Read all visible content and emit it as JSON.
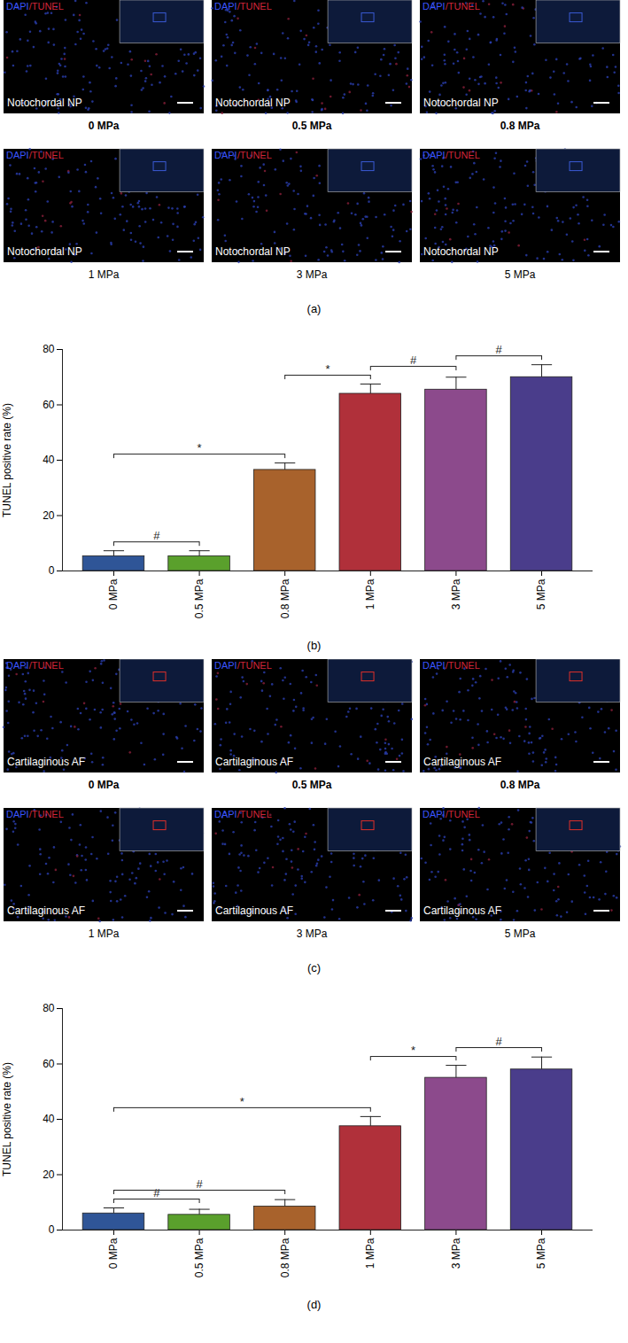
{
  "image_panels": [
    {
      "label": "(a)",
      "tissue": "Notochordal NP",
      "stains": [
        {
          "text": "DAPI",
          "color": "#3a55ff"
        },
        {
          "text": "/TUNEL",
          "color": "#d0263a"
        }
      ],
      "box_color": "#3b5bd6",
      "conditions": [
        "0 MPa",
        "0.5 MPa",
        "0.8 MPa",
        "1 MPa",
        "3 MPa",
        "5 MPa"
      ]
    },
    {
      "label": "(c)",
      "tissue": "Cartilaginous AF",
      "stains": [
        {
          "text": "DAPI",
          "color": "#3a55ff"
        },
        {
          "text": "/TUNEL",
          "color": "#d0263a"
        }
      ],
      "box_color": "#e0302a",
      "conditions": [
        "0 MPa",
        "0.5 MPa",
        "0.8 MPa",
        "1 MPa",
        "3 MPa",
        "5 MPa"
      ]
    }
  ],
  "chart_data": [
    {
      "type": "bar",
      "panel_label": "(b)",
      "categories": [
        "0 MPa",
        "0.5 MPa",
        "0.8 MPa",
        "1 MPa",
        "3 MPa",
        "5 MPa"
      ],
      "values": [
        5.3,
        5.3,
        36.5,
        64,
        65.5,
        70
      ],
      "errors": [
        2,
        2,
        2.5,
        3.5,
        4.5,
        4.5
      ],
      "colors": [
        "#2f5597",
        "#5aa02c",
        "#a8622c",
        "#b0303a",
        "#8c4a8c",
        "#4a3d8b"
      ],
      "y_label": "TUNEL positive rate (%)",
      "ylim": [
        0,
        80
      ],
      "yticks": [
        0,
        20,
        40,
        60,
        80
      ],
      "annotations": [
        {
          "from": "0 MPa",
          "to": "0.5 MPa",
          "label": "#"
        },
        {
          "from": "0 MPa",
          "to": "0.8 MPa",
          "label": "*"
        },
        {
          "from": "0.8 MPa",
          "to": "1 MPa",
          "label": "*"
        },
        {
          "from": "1 MPa",
          "to": "3 MPa",
          "label": "#"
        },
        {
          "from": "3 MPa",
          "to": "5 MPa",
          "label": "#"
        }
      ]
    },
    {
      "type": "bar",
      "panel_label": "(d)",
      "categories": [
        "0 MPa",
        "0.5 MPa",
        "0.8 MPa",
        "1 MPa",
        "3 MPa",
        "5 MPa"
      ],
      "values": [
        6,
        5.5,
        8.5,
        37.5,
        55,
        58
      ],
      "errors": [
        2,
        2,
        2.5,
        3.5,
        4.5,
        4.5
      ],
      "colors": [
        "#2f5597",
        "#5aa02c",
        "#a8622c",
        "#b0303a",
        "#8c4a8c",
        "#4a3d8b"
      ],
      "y_label": "TUNEL positive rate (%)",
      "ylim": [
        0,
        80
      ],
      "yticks": [
        0,
        20,
        40,
        60,
        80
      ],
      "annotations": [
        {
          "from": "0 MPa",
          "to": "0.5 MPa",
          "label": "#"
        },
        {
          "from": "0 MPa",
          "to": "0.8 MPa",
          "label": "#"
        },
        {
          "from": "0 MPa",
          "to": "1 MPa",
          "label": "*"
        },
        {
          "from": "1 MPa",
          "to": "3 MPa",
          "label": "*"
        },
        {
          "from": "3 MPa",
          "to": "5 MPa",
          "label": "#"
        }
      ]
    }
  ]
}
